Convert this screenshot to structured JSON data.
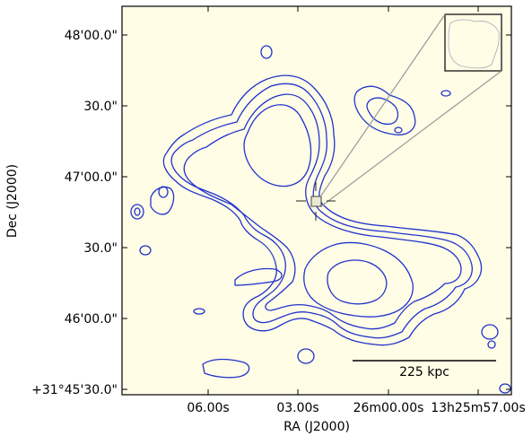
{
  "chart_data": {
    "type": "contour",
    "xlabel": "RA (J2000)",
    "ylabel": "Dec (J2000)",
    "x_ticks": [
      "06.00s",
      "03.00s",
      "26m00.00s",
      "13h25m57.00s"
    ],
    "y_ticks": [
      "+31°45'30.0\"",
      "46'00.0\"",
      "30.0\"",
      "47'00.0\"",
      "30.0\"",
      "48'00.0\""
    ],
    "scalebar_label": "225 kpc",
    "grid": false,
    "background_color": "#fffde6",
    "contour_color": "#2233cc",
    "inset_position": "top-right"
  }
}
